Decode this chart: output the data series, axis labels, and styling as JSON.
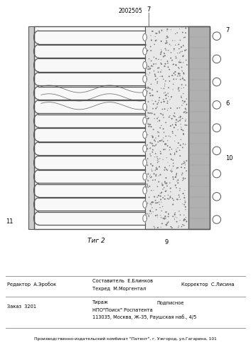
{
  "title_text": "2002505",
  "fig_label": "Τиг 2",
  "line_color": "#555555",
  "figure_width": 3.53,
  "figure_height": 4.99,
  "dpi": 100,
  "footer_bottom": "Производственно-издательский комбинат \"Патент\", г. Ужгород, ул.Гагарина, 101",
  "labels": {
    "7_top": "7",
    "7_right": "7",
    "6": "6",
    "10": "10",
    "9": "9",
    "11": "11"
  }
}
